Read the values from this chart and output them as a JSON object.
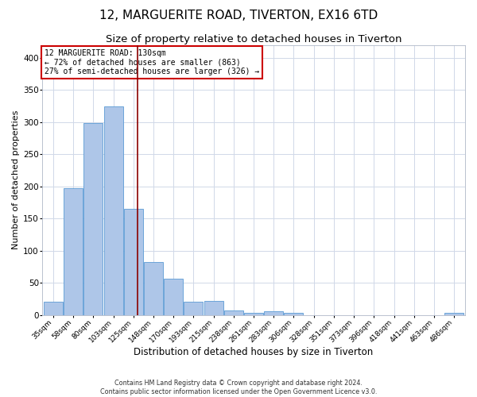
{
  "title": "12, MARGUERITE ROAD, TIVERTON, EX16 6TD",
  "subtitle": "Size of property relative to detached houses in Tiverton",
  "xlabel": "Distribution of detached houses by size in Tiverton",
  "ylabel": "Number of detached properties",
  "categories": [
    "35sqm",
    "58sqm",
    "80sqm",
    "103sqm",
    "125sqm",
    "148sqm",
    "170sqm",
    "193sqm",
    "215sqm",
    "238sqm",
    "261sqm",
    "283sqm",
    "306sqm",
    "328sqm",
    "351sqm",
    "373sqm",
    "396sqm",
    "418sqm",
    "441sqm",
    "463sqm",
    "486sqm"
  ],
  "values": [
    20,
    197,
    299,
    324,
    165,
    82,
    56,
    20,
    22,
    7,
    3,
    6,
    3,
    0,
    0,
    0,
    0,
    0,
    0,
    0,
    3
  ],
  "bar_color": "#aec6e8",
  "bar_edge_color": "#5b9bd5",
  "reference_line_color": "#8b0000",
  "ylim": [
    0,
    420
  ],
  "yticks": [
    0,
    50,
    100,
    150,
    200,
    250,
    300,
    350,
    400
  ],
  "annotation_title": "12 MARGUERITE ROAD: 130sqm",
  "annotation_line1": "← 72% of detached houses are smaller (863)",
  "annotation_line2": "27% of semi-detached houses are larger (326) →",
  "annotation_box_color": "#ffffff",
  "annotation_box_edge_color": "#cc0000",
  "footer_line1": "Contains HM Land Registry data © Crown copyright and database right 2024.",
  "footer_line2": "Contains public sector information licensed under the Open Government Licence v3.0.",
  "background_color": "#ffffff",
  "grid_color": "#d0d8e8",
  "title_fontsize": 11,
  "subtitle_fontsize": 9.5,
  "xlabel_fontsize": 8.5,
  "ylabel_fontsize": 8
}
